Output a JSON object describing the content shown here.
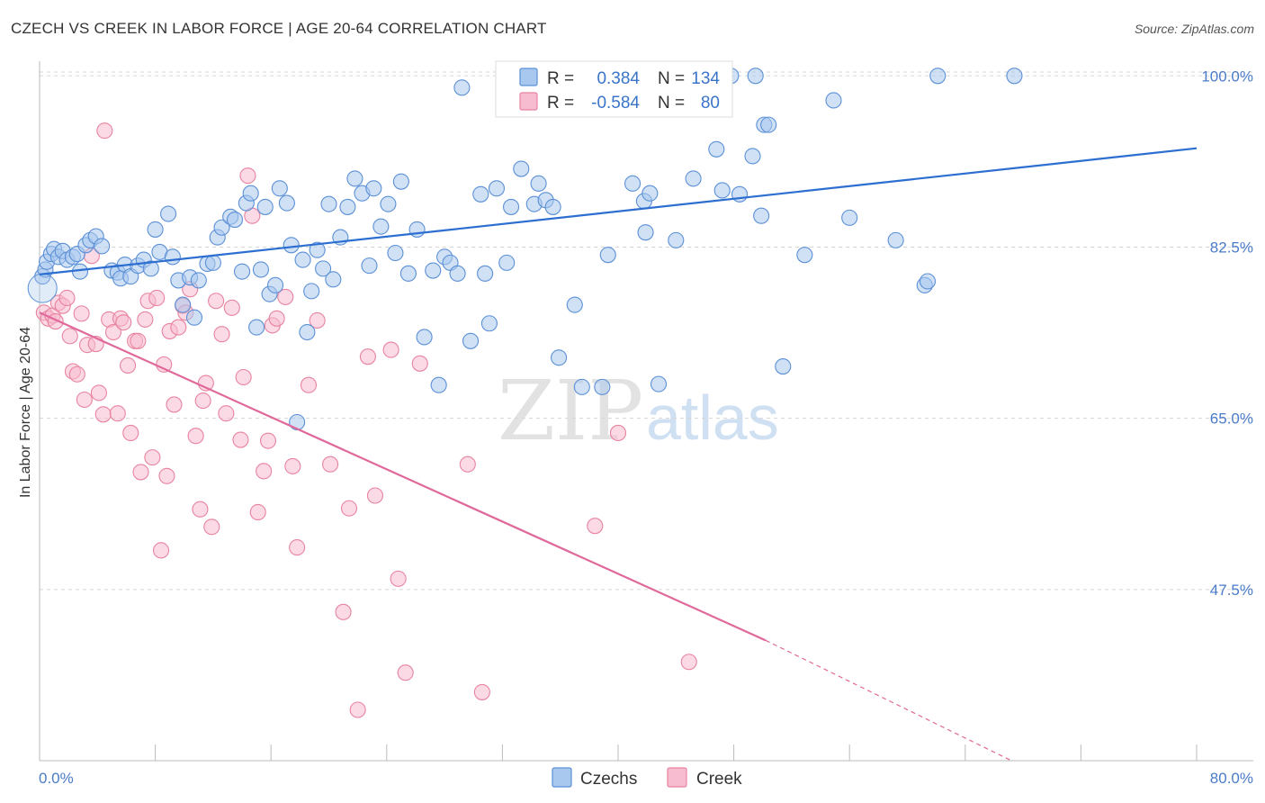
{
  "header": {
    "title": "CZECH VS CREEK IN LABOR FORCE | AGE 20-64 CORRELATION CHART",
    "source": "Source: ZipAtlas.com"
  },
  "watermark": {
    "zip": "ZIP",
    "atlas": "atlas"
  },
  "colors": {
    "czechs_fill": "#a9c8ef",
    "czechs_stroke": "#5b90d6",
    "czechs_line": "#2d6fd0",
    "creek_fill": "#f7bcd0",
    "creek_stroke": "#e8839f",
    "creek_line": "#e0689a",
    "grid": "#d6d6d6",
    "tick_text": "#4a7bc9"
  },
  "legend": {
    "rows": [
      {
        "r_label": "R =",
        "r_value": "0.384",
        "n_label": "N =",
        "n_value": "134"
      },
      {
        "r_label": "R =",
        "r_value": "-0.584",
        "n_label": "N =",
        "n_value": "80"
      }
    ]
  },
  "chart_data": {
    "type": "scatter",
    "title": "CZECH VS CREEK IN LABOR FORCE | AGE 20-64 CORRELATION CHART",
    "xlabel": "",
    "ylabel": "In Labor Force | Age 20-64",
    "xlim": [
      0,
      80
    ],
    "ylim": [
      30,
      101.5
    ],
    "x_tick_labels": [
      "0.0%",
      "80.0%"
    ],
    "y_ticks": [
      47.5,
      65.0,
      82.5,
      100.0
    ],
    "y_tick_labels": [
      "47.5%",
      "65.0%",
      "82.5%",
      "100.0%"
    ],
    "grid": true,
    "legend_position": "top-center",
    "series": [
      {
        "name": "Czechs",
        "r": 0.384,
        "n": 134,
        "trend": {
          "x": [
            0,
            80
          ],
          "y": [
            79.7,
            92.6
          ]
        },
        "points": [
          [
            0.2,
            79.5
          ],
          [
            0.4,
            80.2
          ],
          [
            0.5,
            81.0
          ],
          [
            0.8,
            81.8
          ],
          [
            1.0,
            82.3
          ],
          [
            1.3,
            81.5
          ],
          [
            1.6,
            82.1
          ],
          [
            1.9,
            81.2
          ],
          [
            2.3,
            81.5
          ],
          [
            2.6,
            81.8
          ],
          [
            2.8,
            80.0
          ],
          [
            3.2,
            82.7
          ],
          [
            3.5,
            83.2
          ],
          [
            3.9,
            83.6
          ],
          [
            4.3,
            82.6
          ],
          [
            5.0,
            80.1
          ],
          [
            5.4,
            79.9
          ],
          [
            5.6,
            79.3
          ],
          [
            5.9,
            80.7
          ],
          [
            6.3,
            79.5
          ],
          [
            6.8,
            80.6
          ],
          [
            7.2,
            81.2
          ],
          [
            7.7,
            80.3
          ],
          [
            8.0,
            84.3
          ],
          [
            8.3,
            82.0
          ],
          [
            8.9,
            85.9
          ],
          [
            9.2,
            81.5
          ],
          [
            9.6,
            79.1
          ],
          [
            9.9,
            76.6
          ],
          [
            10.4,
            79.4
          ],
          [
            10.7,
            75.3
          ],
          [
            11.0,
            79.1
          ],
          [
            11.6,
            80.8
          ],
          [
            12.0,
            80.9
          ],
          [
            12.3,
            83.5
          ],
          [
            12.6,
            84.5
          ],
          [
            13.2,
            85.6
          ],
          [
            13.5,
            85.3
          ],
          [
            14.0,
            80.0
          ],
          [
            14.3,
            87.0
          ],
          [
            14.6,
            88.0
          ],
          [
            15.0,
            74.3
          ],
          [
            15.3,
            80.2
          ],
          [
            15.6,
            86.6
          ],
          [
            15.9,
            77.7
          ],
          [
            16.3,
            78.6
          ],
          [
            16.6,
            88.5
          ],
          [
            17.1,
            87.0
          ],
          [
            17.4,
            82.7
          ],
          [
            17.8,
            64.6
          ],
          [
            18.2,
            81.2
          ],
          [
            18.5,
            73.8
          ],
          [
            18.8,
            78.0
          ],
          [
            19.2,
            82.2
          ],
          [
            19.6,
            80.3
          ],
          [
            20.0,
            86.9
          ],
          [
            20.3,
            79.2
          ],
          [
            20.8,
            83.5
          ],
          [
            21.3,
            86.6
          ],
          [
            21.8,
            89.5
          ],
          [
            22.3,
            88.0
          ],
          [
            22.8,
            80.6
          ],
          [
            23.1,
            88.5
          ],
          [
            23.6,
            84.6
          ],
          [
            24.1,
            86.9
          ],
          [
            24.6,
            81.9
          ],
          [
            25.0,
            89.2
          ],
          [
            25.5,
            79.8
          ],
          [
            26.1,
            84.3
          ],
          [
            26.6,
            73.3
          ],
          [
            27.2,
            80.1
          ],
          [
            27.6,
            68.4
          ],
          [
            28.0,
            81.5
          ],
          [
            28.4,
            80.9
          ],
          [
            28.9,
            79.8
          ],
          [
            29.2,
            98.8
          ],
          [
            29.8,
            72.9
          ],
          [
            30.5,
            87.9
          ],
          [
            30.8,
            79.8
          ],
          [
            31.1,
            74.7
          ],
          [
            31.6,
            88.5
          ],
          [
            32.3,
            80.9
          ],
          [
            32.6,
            86.6
          ],
          [
            33.3,
            90.5
          ],
          [
            34.2,
            86.9
          ],
          [
            34.5,
            89.0
          ],
          [
            35.0,
            87.3
          ],
          [
            35.5,
            86.6
          ],
          [
            35.9,
            71.2
          ],
          [
            36.0,
            100.0
          ],
          [
            37.0,
            76.6
          ],
          [
            37.5,
            68.2
          ],
          [
            38.9,
            68.2
          ],
          [
            39.3,
            81.7
          ],
          [
            41.0,
            89.0
          ],
          [
            41.8,
            87.2
          ],
          [
            41.9,
            84.0
          ],
          [
            42.2,
            88.0
          ],
          [
            42.8,
            68.5
          ],
          [
            42.9,
            100.0
          ],
          [
            44.0,
            83.2
          ],
          [
            45.2,
            89.5
          ],
          [
            46.8,
            92.5
          ],
          [
            47.2,
            88.3
          ],
          [
            47.8,
            100.0
          ],
          [
            48.4,
            87.9
          ],
          [
            49.3,
            91.8
          ],
          [
            49.9,
            85.7
          ],
          [
            50.1,
            95.0
          ],
          [
            50.4,
            95.0
          ],
          [
            49.5,
            100.0
          ],
          [
            51.4,
            70.3
          ],
          [
            52.9,
            81.7
          ],
          [
            54.9,
            97.5
          ],
          [
            56.0,
            85.5
          ],
          [
            59.2,
            83.2
          ],
          [
            61.2,
            78.6
          ],
          [
            61.4,
            79.0
          ],
          [
            62.1,
            100.0
          ],
          [
            67.4,
            100.0
          ]
        ]
      },
      {
        "name": "Creek",
        "r": -0.584,
        "n": 80,
        "trend": {
          "x": [
            0,
            50.2
          ],
          "y": [
            75.8,
            42.3
          ]
        },
        "trend_dashed": {
          "x": [
            50.2,
            67.2
          ],
          "y": [
            42.3,
            30.0
          ]
        },
        "points": [
          [
            0.3,
            75.8
          ],
          [
            0.6,
            75.2
          ],
          [
            0.9,
            75.5
          ],
          [
            1.1,
            74.9
          ],
          [
            1.3,
            76.8
          ],
          [
            1.6,
            76.5
          ],
          [
            1.9,
            77.3
          ],
          [
            2.1,
            73.4
          ],
          [
            2.3,
            69.8
          ],
          [
            2.6,
            69.5
          ],
          [
            2.9,
            75.7
          ],
          [
            3.1,
            66.9
          ],
          [
            3.3,
            72.5
          ],
          [
            3.6,
            81.6
          ],
          [
            3.9,
            72.6
          ],
          [
            4.1,
            67.6
          ],
          [
            4.4,
            65.4
          ],
          [
            4.8,
            75.1
          ],
          [
            5.1,
            73.8
          ],
          [
            5.4,
            65.5
          ],
          [
            5.6,
            75.2
          ],
          [
            5.8,
            74.8
          ],
          [
            6.1,
            70.4
          ],
          [
            6.3,
            63.5
          ],
          [
            6.6,
            72.9
          ],
          [
            6.8,
            72.9
          ],
          [
            7.0,
            59.5
          ],
          [
            7.3,
            75.1
          ],
          [
            7.5,
            77.0
          ],
          [
            7.8,
            61.0
          ],
          [
            8.1,
            77.3
          ],
          [
            8.4,
            51.5
          ],
          [
            8.6,
            70.5
          ],
          [
            8.8,
            59.1
          ],
          [
            9.0,
            73.9
          ],
          [
            9.3,
            66.4
          ],
          [
            9.6,
            74.3
          ],
          [
            9.9,
            76.5
          ],
          [
            10.1,
            75.8
          ],
          [
            10.4,
            78.2
          ],
          [
            10.8,
            63.2
          ],
          [
            11.1,
            55.7
          ],
          [
            11.3,
            66.8
          ],
          [
            11.5,
            68.6
          ],
          [
            11.9,
            53.9
          ],
          [
            12.2,
            77.0
          ],
          [
            12.6,
            73.6
          ],
          [
            12.9,
            65.5
          ],
          [
            13.3,
            76.3
          ],
          [
            13.9,
            62.8
          ],
          [
            14.1,
            69.2
          ],
          [
            14.4,
            89.8
          ],
          [
            14.7,
            85.7
          ],
          [
            15.1,
            55.4
          ],
          [
            15.5,
            59.6
          ],
          [
            15.8,
            62.7
          ],
          [
            16.1,
            74.5
          ],
          [
            16.4,
            75.2
          ],
          [
            17.0,
            77.4
          ],
          [
            17.5,
            60.1
          ],
          [
            17.8,
            51.8
          ],
          [
            18.6,
            68.4
          ],
          [
            19.2,
            75.0
          ],
          [
            20.1,
            60.3
          ],
          [
            21.0,
            45.2
          ],
          [
            21.4,
            55.8
          ],
          [
            22.0,
            35.2
          ],
          [
            22.7,
            71.3
          ],
          [
            23.2,
            57.1
          ],
          [
            24.3,
            72.0
          ],
          [
            24.8,
            48.6
          ],
          [
            25.3,
            39.0
          ],
          [
            26.3,
            70.6
          ],
          [
            29.6,
            60.3
          ],
          [
            30.6,
            37.0
          ],
          [
            38.4,
            54.0
          ],
          [
            40.0,
            63.5
          ],
          [
            44.9,
            40.1
          ],
          [
            4.5,
            94.4
          ]
        ]
      }
    ]
  },
  "bottom_legend": {
    "items": [
      {
        "label": "Czechs"
      },
      {
        "label": "Creek"
      }
    ]
  },
  "y_axis": {
    "label": "In Labor Force | Age 20-64"
  },
  "x_axis": {
    "min_label": "0.0%",
    "max_label": "80.0%"
  }
}
